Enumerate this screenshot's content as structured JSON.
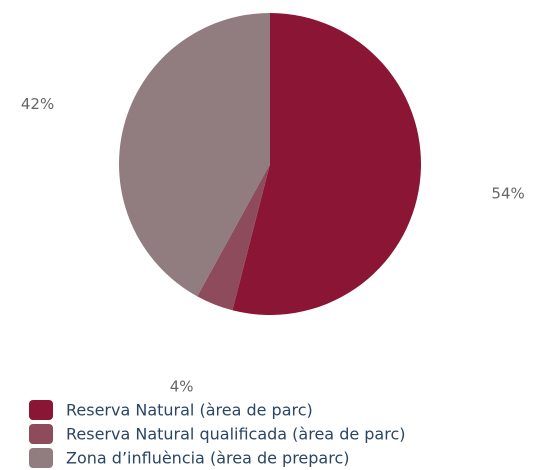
{
  "chart_data": {
    "type": "pie",
    "categories": [
      "Reserva Natural (àrea de parc)",
      "Reserva Natural qualificada (àrea de parc)",
      "Zona d’influència (àrea de preparc)"
    ],
    "values": [
      54,
      4,
      42
    ],
    "value_labels": [
      "54%",
      "4%",
      "42%"
    ],
    "colors": [
      "#8a1535",
      "#8e4b5b",
      "#917c7f"
    ]
  }
}
